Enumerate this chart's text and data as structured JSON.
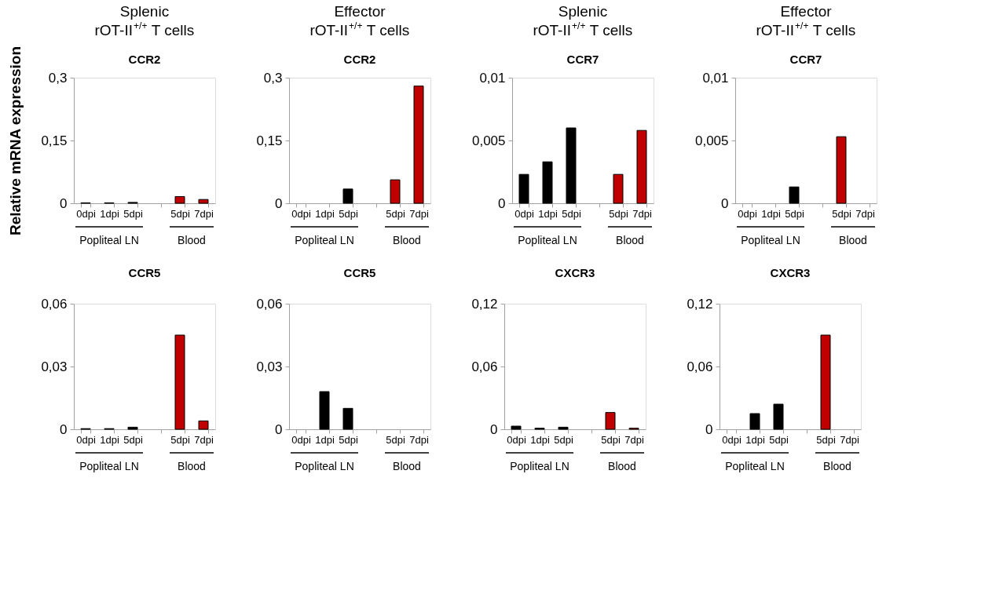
{
  "chart_data": [
    {
      "type": "bar",
      "title": "Splenic rOT-II$^{+/+}$ T cells",
      "subtitle": "CCR2",
      "ylabel": "Relative mRNA expression",
      "categories": [
        "0dpi",
        "1dpi",
        "5dpi",
        null,
        "5dpi",
        "7dpi"
      ],
      "values": [
        0.001,
        0.001,
        0.002,
        null,
        0.016,
        0.009
      ],
      "colors": [
        "#000000",
        "#000000",
        "#000000",
        null,
        "#c00000",
        "#c00000"
      ],
      "ylim": [
        0,
        0.3
      ],
      "yticks": [
        0,
        {
          "value": 0.15,
          "label": "0,15"
        },
        {
          "value": 0.3,
          "label": "0,3"
        }
      ],
      "annotations": [
        "Popliteal LN",
        "Blood"
      ],
      "grid": false
    },
    {
      "type": "bar",
      "title": "Effector rOT-II$^{+/+}$ T cells",
      "subtitle": "CCR2",
      "categories": [
        "0dpi",
        "1dpi",
        "5dpi",
        null,
        "5dpi",
        "7dpi"
      ],
      "values": [
        0,
        0,
        0.034,
        null,
        0.056,
        0.28
      ],
      "colors": [
        "#000000",
        "#000000",
        "#000000",
        null,
        "#c00000",
        "#c00000"
      ],
      "ylim": [
        0,
        0.3
      ],
      "yticks": [
        0,
        {
          "value": 0.15,
          "label": "0,15"
        },
        {
          "value": 0.3,
          "label": "0,3"
        }
      ],
      "annotations": [
        "Popliteal LN",
        "Blood"
      ],
      "grid": false
    },
    {
      "type": "bar",
      "title": "Splenic rOT-II$^{+/+}$ T cells",
      "subtitle": "CCR7",
      "categories": [
        "0dpi",
        "1dpi",
        "5dpi",
        null,
        "5dpi",
        "7dpi"
      ],
      "values": [
        0.0023,
        0.0033,
        0.006,
        null,
        0.0023,
        0.0058
      ],
      "colors": [
        "#000000",
        "#000000",
        "#000000",
        null,
        "#c00000",
        "#c00000"
      ],
      "ylim": [
        0,
        0.01
      ],
      "yticks": [
        0,
        {
          "value": 0.005,
          "label": "0,005"
        },
        {
          "value": 0.01,
          "label": "0,01"
        }
      ],
      "annotations": [
        "Popliteal LN",
        "Blood"
      ],
      "grid": false
    },
    {
      "type": "bar",
      "title": "Effector rOT-II$^{+/+}$ T cells",
      "subtitle": "CCR7",
      "categories": [
        "0dpi",
        "1dpi",
        "5dpi",
        null,
        "5dpi",
        "7dpi"
      ],
      "values": [
        0,
        0,
        0.0013,
        null,
        0.0053,
        0
      ],
      "colors": [
        "#000000",
        "#000000",
        "#000000",
        null,
        "#c00000",
        "#c00000"
      ],
      "ylim": [
        0,
        0.01
      ],
      "yticks": [
        0,
        {
          "value": 0.005,
          "label": "0,005"
        },
        {
          "value": 0.01,
          "label": "0,01"
        }
      ],
      "annotations": [
        "Popliteal LN",
        "Blood"
      ],
      "grid": false
    },
    {
      "type": "bar",
      "title": "CCR5",
      "categories": [
        "0dpi",
        "1dpi",
        "5dpi",
        null,
        "5dpi",
        "7dpi"
      ],
      "values": [
        0.0003,
        0.0003,
        0.001,
        null,
        0.045,
        0.004
      ],
      "colors": [
        "#000000",
        "#000000",
        "#000000",
        null,
        "#c00000",
        "#c00000"
      ],
      "ylim": [
        0,
        0.06
      ],
      "yticks": [
        0,
        {
          "value": 0.03,
          "label": "0,03"
        },
        {
          "value": 0.06,
          "label": "0,06"
        }
      ],
      "annotations": [
        "Popliteal LN",
        "Blood"
      ],
      "grid": false
    },
    {
      "type": "bar",
      "title": "CCR5",
      "categories": [
        "0dpi",
        "1dpi",
        "5dpi",
        null,
        "5dpi",
        "7dpi"
      ],
      "values": [
        0,
        0.018,
        0.01,
        null,
        0,
        0
      ],
      "colors": [
        "#000000",
        "#000000",
        "#000000",
        null,
        "#c00000",
        "#c00000"
      ],
      "ylim": [
        0,
        0.06
      ],
      "yticks": [
        0,
        {
          "value": 0.03,
          "label": "0,03"
        },
        {
          "value": 0.06,
          "label": "0,06"
        }
      ],
      "annotations": [
        "Popliteal LN",
        "Blood"
      ],
      "grid": false
    },
    {
      "type": "bar",
      "title": "CXCR3",
      "categories": [
        "0dpi",
        "1dpi",
        "5dpi",
        null,
        "5dpi",
        "7dpi"
      ],
      "values": [
        0.003,
        0.001,
        0.002,
        null,
        0.016,
        0.001
      ],
      "colors": [
        "#000000",
        "#000000",
        "#000000",
        null,
        "#c00000",
        "#c00000"
      ],
      "ylim": [
        0,
        0.12
      ],
      "yticks": [
        0,
        {
          "value": 0.06,
          "label": "0,06"
        },
        {
          "value": 0.12,
          "label": "0,12"
        }
      ],
      "annotations": [
        "Popliteal LN",
        "Blood"
      ],
      "grid": false
    },
    {
      "type": "bar",
      "title": "CXCR3",
      "categories": [
        "0dpi",
        "1dpi",
        "5dpi",
        null,
        "5dpi",
        "7dpi"
      ],
      "values": [
        0,
        0.015,
        0.024,
        null,
        0.09,
        0
      ],
      "colors": [
        "#000000",
        "#000000",
        "#000000",
        null,
        "#c00000",
        "#c00000"
      ],
      "ylim": [
        0,
        0.12
      ],
      "yticks": [
        0,
        {
          "value": 0.06,
          "label": "0,06"
        },
        {
          "value": 0.12,
          "label": "0,12"
        }
      ],
      "annotations": [
        "Popliteal LN",
        "Blood"
      ],
      "grid": false
    }
  ]
}
